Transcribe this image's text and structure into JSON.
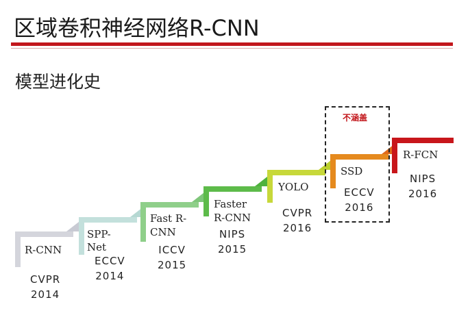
{
  "header": {
    "title": "区域卷积神经网络R-CNN",
    "subtitle": "模型进化史"
  },
  "callout": {
    "label": "不涵盖"
  },
  "steps": [
    {
      "name": "R-CNN",
      "venue": "CVPR",
      "year": "2014",
      "color": "#d4d5dc",
      "tip_color": "#c8cad3"
    },
    {
      "name_line1": "SPP-",
      "name_line2": "Net",
      "venue": "ECCV",
      "year": "2014",
      "color": "#c3e0dc",
      "tip_color": "#b5d8d2"
    },
    {
      "name_line1": "Fast R-",
      "name_line2": "CNN",
      "venue": "ICCV",
      "year": "2015",
      "color": "#8fcf8a",
      "tip_color": "#7fc67a"
    },
    {
      "name_line1": "Faster",
      "name_line2": "R-CNN",
      "venue": "NIPS",
      "year": "2015",
      "color": "#5dbb4a",
      "tip_color": "#4fb23d"
    },
    {
      "name": "YOLO",
      "venue": "CVPR",
      "year": "2016",
      "color": "#c7d83a",
      "tip_color": "#bccf2e"
    },
    {
      "name": "SSD",
      "venue": "ECCV",
      "year": "2016",
      "color": "#e58a1e",
      "tip_color": "#df6a1a"
    },
    {
      "name": "R-FCN",
      "venue": "NIPS",
      "year": "2016",
      "color": "#c8161b",
      "tip_color": "#b01216"
    }
  ]
}
